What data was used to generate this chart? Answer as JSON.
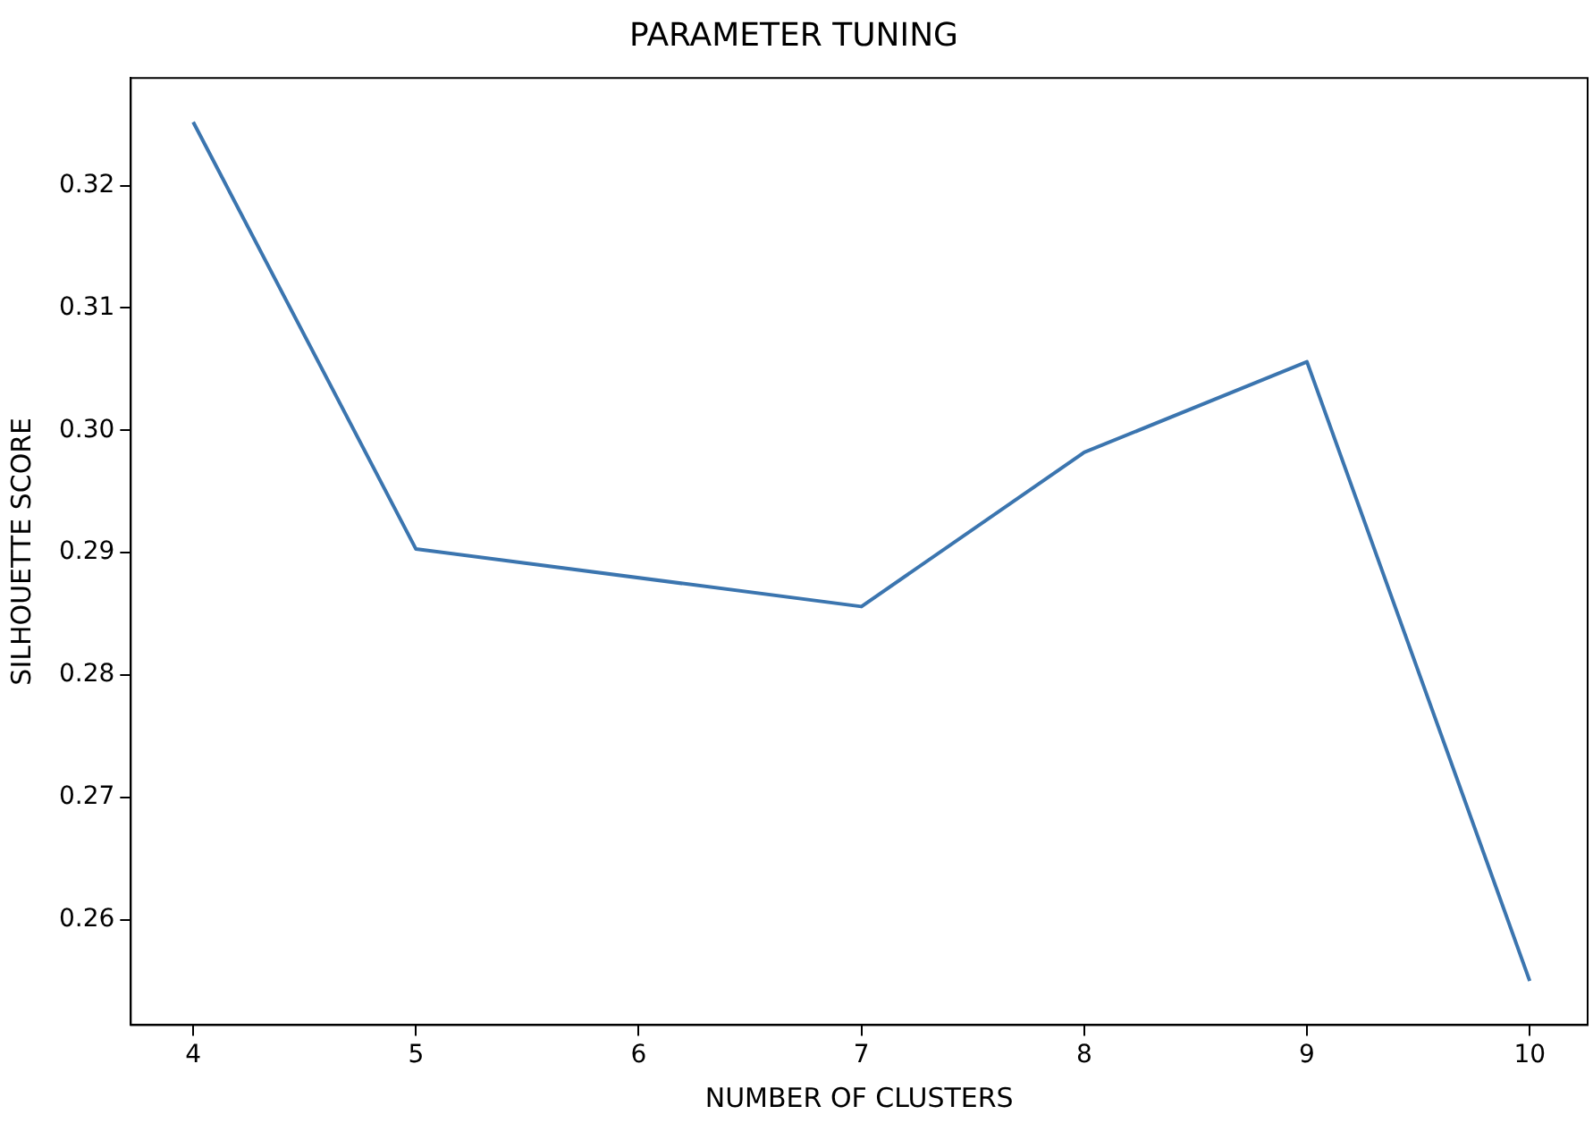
{
  "chart_data": {
    "type": "line",
    "title": "PARAMETER TUNING",
    "xlabel": "NUMBER OF CLUSTERS",
    "ylabel": "SILHOUETTE SCORE",
    "x": [
      4,
      5,
      7,
      8,
      9,
      10
    ],
    "series": [
      {
        "color": "#3b75af",
        "values": [
          0.3252,
          0.2903,
          0.2856,
          0.2982,
          0.3056,
          0.255
        ]
      }
    ],
    "xlim": [
      3.72,
      10.26
    ],
    "xticks": [
      4,
      5,
      6,
      7,
      8,
      9,
      10
    ],
    "ylim": [
      0.2514,
      0.3288
    ],
    "yticks": [
      0.26,
      0.27,
      0.28,
      0.29,
      {
        "value": 0.3,
        "label": "0.30"
      },
      0.31,
      0.32
    ],
    "grid": false,
    "legend": false,
    "marker": "none",
    "line_style": "solid"
  }
}
